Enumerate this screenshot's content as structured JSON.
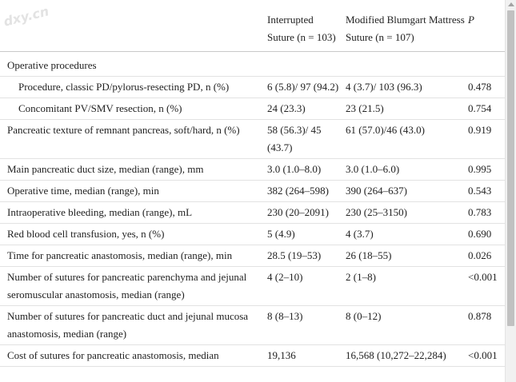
{
  "watermark": "dxy.cn",
  "header": {
    "col1": "",
    "col2": "Interrupted Suture (n = 103)",
    "col3": "Modified Blumgart Mattress Suture (n = 107)",
    "col4": "P"
  },
  "rows": [
    {
      "label": "Operative procedures",
      "a": "",
      "b": "",
      "p": ""
    },
    {
      "label": "Procedure, classic PD/pylorus-resecting PD, n (%)",
      "a": "6 (5.8)/ 97 (94.2)",
      "b": "4 (3.7)/ 103 (96.3)",
      "p": "0.478"
    },
    {
      "label": "Concomitant PV/SMV resection, n (%)",
      "a": "24 (23.3)",
      "b": "23 (21.5)",
      "p": "0.754"
    },
    {
      "label": "Pancreatic texture of remnant pancreas, soft/hard, n (%)",
      "a": "58 (56.3)/ 45 (43.7)",
      "b": "61 (57.0)/46 (43.0)",
      "p": "0.919"
    },
    {
      "label": "Main pancreatic duct size, median (range), mm",
      "a": "3.0 (1.0–8.0)",
      "b": "3.0 (1.0–6.0)",
      "p": "0.995"
    },
    {
      "label": "Operative time, median (range), min",
      "a": "382 (264–598)",
      "b": "390 (264–637)",
      "p": "0.543"
    },
    {
      "label": "Intraoperative bleeding, median (range), mL",
      "a": "230 (20–2091)",
      "b": "230 (25–3150)",
      "p": "0.783"
    },
    {
      "label": "Red blood cell transfusion, yes, n (%)",
      "a": "5 (4.9)",
      "b": "4 (3.7)",
      "p": "0.690"
    },
    {
      "label": "Time for pancreatic anastomosis, median (range), min",
      "a": "28.5 (19–53)",
      "b": "26 (18–55)",
      "p": "0.026"
    },
    {
      "label": "Number of sutures for pancreatic parenchyma and jejunal seromuscular anastomosis, median (range)",
      "a": "4 (2–10)",
      "b": "2 (1–8)",
      "p": "<0.001"
    },
    {
      "label": "Number of sutures for pancreatic duct and jejunal mucosa anastomosis, median (range)",
      "a": "8 (8–13)",
      "b": "8 (0–12)",
      "p": "0.878"
    },
    {
      "label": "Cost of sutures for pancreatic anastomosis, median",
      "a": "19,136",
      "b": "16,568 (10,272–22,284)",
      "p": "<0.001"
    }
  ]
}
